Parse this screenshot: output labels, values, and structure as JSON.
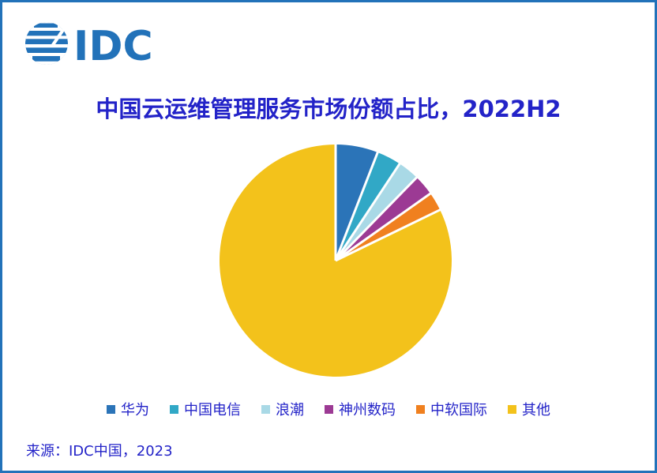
{
  "theme": {
    "brand_blue": "#2272B9",
    "text_blue": "#2323C8",
    "page_background": "#FFFFFF",
    "border_color": "#2272B9",
    "slice_gap_color": "#FFFFFF"
  },
  "logo": {
    "text": "IDC",
    "icon": "idc-globe-icon",
    "color": "#2272B9"
  },
  "title": {
    "text": "中国云运维管理服务市场份额占比，2022H2"
  },
  "source": {
    "text": "来源：IDC中国，2023"
  },
  "chart_data": {
    "type": "pie",
    "title": "中国云运维管理服务市场份额占比，2022H2",
    "units": "% market share (values estimated from arc angles; no data labels shown in chart)",
    "start_angle_deg": 0,
    "direction": "clockwise",
    "legend_position": "bottom",
    "slices": [
      {
        "label": "华为",
        "value": 5.9,
        "color": "#2B74B8"
      },
      {
        "label": "中国电信",
        "value": 3.4,
        "color": "#31A8C6"
      },
      {
        "label": "浪潮",
        "value": 3.0,
        "color": "#A9D9E6"
      },
      {
        "label": "神州数码",
        "value": 2.9,
        "color": "#9C3A94"
      },
      {
        "label": "中软国际",
        "value": 2.6,
        "color": "#F0801F"
      },
      {
        "label": "其他",
        "value": 82.2,
        "color": "#F3C21B"
      }
    ]
  }
}
